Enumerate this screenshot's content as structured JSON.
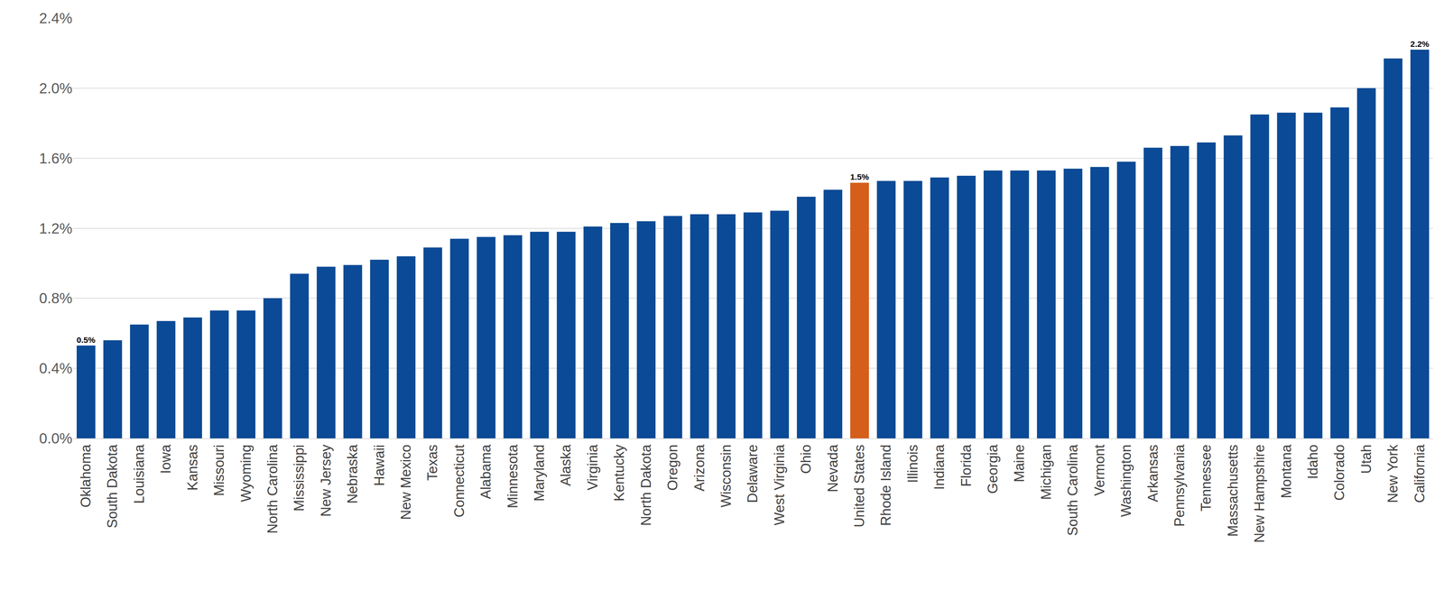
{
  "chart_data": {
    "type": "bar",
    "categories": [
      "Oklahoma",
      "South Dakota",
      "Louisiana",
      "Iowa",
      "Kansas",
      "Missouri",
      "Wyoming",
      "North Carolina",
      "Mississippi",
      "New Jersey",
      "Nebraska",
      "Hawaii",
      "New Mexico",
      "Texas",
      "Connecticut",
      "Alabama",
      "Minnesota",
      "Maryland",
      "Alaska",
      "Virginia",
      "Kentucky",
      "North Dakota",
      "Oregon",
      "Arizona",
      "Wisconsin",
      "Delaware",
      "West Virginia",
      "Ohio",
      "Nevada",
      "United States",
      "Rhode Island",
      "Illinois",
      "Indiana",
      "Florida",
      "Georgia",
      "Maine",
      "Michigan",
      "South Carolina",
      "Vermont",
      "Washington",
      "Arkansas",
      "Pennsylvania",
      "Tennessee",
      "Massachusetts",
      "New Hampshire",
      "Montana",
      "Idaho",
      "Colorado",
      "Utah",
      "New York",
      "California"
    ],
    "values": [
      0.53,
      0.56,
      0.65,
      0.67,
      0.69,
      0.73,
      0.73,
      0.8,
      0.94,
      0.98,
      0.99,
      1.02,
      1.04,
      1.09,
      1.14,
      1.15,
      1.16,
      1.18,
      1.18,
      1.21,
      1.23,
      1.24,
      1.27,
      1.28,
      1.28,
      1.29,
      1.3,
      1.38,
      1.42,
      1.46,
      1.47,
      1.47,
      1.49,
      1.5,
      1.53,
      1.53,
      1.53,
      1.54,
      1.55,
      1.58,
      1.66,
      1.67,
      1.69,
      1.73,
      1.85,
      1.86,
      1.86,
      1.89,
      2.0,
      2.17,
      2.22
    ],
    "value_labels": [
      "0.5%",
      null,
      null,
      null,
      null,
      null,
      null,
      null,
      null,
      null,
      null,
      null,
      null,
      null,
      null,
      null,
      null,
      null,
      null,
      null,
      null,
      null,
      null,
      null,
      null,
      null,
      null,
      null,
      null,
      "1.5%",
      null,
      null,
      null,
      null,
      null,
      null,
      null,
      null,
      null,
      null,
      null,
      null,
      null,
      null,
      null,
      null,
      null,
      null,
      null,
      null,
      "2.2%"
    ],
    "colors": [
      "#0b4a96",
      "#0b4a96",
      "#0b4a96",
      "#0b4a96",
      "#0b4a96",
      "#0b4a96",
      "#0b4a96",
      "#0b4a96",
      "#0b4a96",
      "#0b4a96",
      "#0b4a96",
      "#0b4a96",
      "#0b4a96",
      "#0b4a96",
      "#0b4a96",
      "#0b4a96",
      "#0b4a96",
      "#0b4a96",
      "#0b4a96",
      "#0b4a96",
      "#0b4a96",
      "#0b4a96",
      "#0b4a96",
      "#0b4a96",
      "#0b4a96",
      "#0b4a96",
      "#0b4a96",
      "#0b4a96",
      "#0b4a96",
      "#d55e1a",
      "#0b4a96",
      "#0b4a96",
      "#0b4a96",
      "#0b4a96",
      "#0b4a96",
      "#0b4a96",
      "#0b4a96",
      "#0b4a96",
      "#0b4a96",
      "#0b4a96",
      "#0b4a96",
      "#0b4a96",
      "#0b4a96",
      "#0b4a96",
      "#0b4a96",
      "#0b4a96",
      "#0b4a96",
      "#0b4a96",
      "#0b4a96",
      "#0b4a96",
      "#0b4a96"
    ],
    "ylim": [
      0,
      2.4
    ],
    "yticks": [
      {
        "value": 0,
        "label": "0.0%"
      },
      {
        "value": 0.4,
        "label": "0.4%"
      },
      {
        "value": 0.8,
        "label": "0.8%"
      },
      {
        "value": 1.2,
        "label": "1.2%"
      },
      {
        "value": 1.6,
        "label": "1.6%"
      },
      {
        "value": 2.0,
        "label": "2.0%"
      },
      {
        "value": 2.4,
        "label": "2.4%"
      }
    ],
    "grid": true,
    "data_labels": true
  }
}
